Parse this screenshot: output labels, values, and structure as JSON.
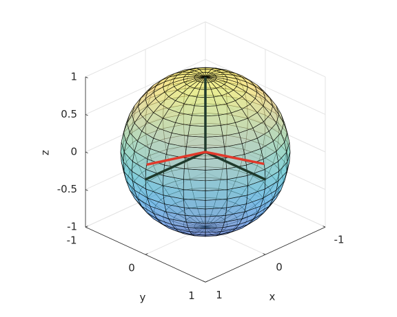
{
  "chart_data": {
    "type": "sphere3d",
    "xlabel": "x",
    "ylabel": "y",
    "zlabel": "z",
    "xlim": [
      -1,
      1
    ],
    "ylim": [
      -1,
      1
    ],
    "zlim": [
      -1,
      1
    ],
    "xticks": [
      -1,
      0,
      1
    ],
    "yticks": [
      -1,
      0,
      1
    ],
    "zticks": [
      -1,
      -0.5,
      0,
      0.5,
      1
    ],
    "grid": true,
    "radius": 1,
    "vectors": [
      {
        "color": "#1f3a2c",
        "x": [
          1,
          0,
          0
        ],
        "y": [
          0,
          1,
          0
        ],
        "z": [
          0,
          0,
          1
        ]
      },
      {
        "color": "#e0392b",
        "x": [
          0.98,
          0
        ],
        "y": [
          0,
          0.98
        ],
        "z": [
          0.19,
          0.2
        ]
      }
    ]
  }
}
